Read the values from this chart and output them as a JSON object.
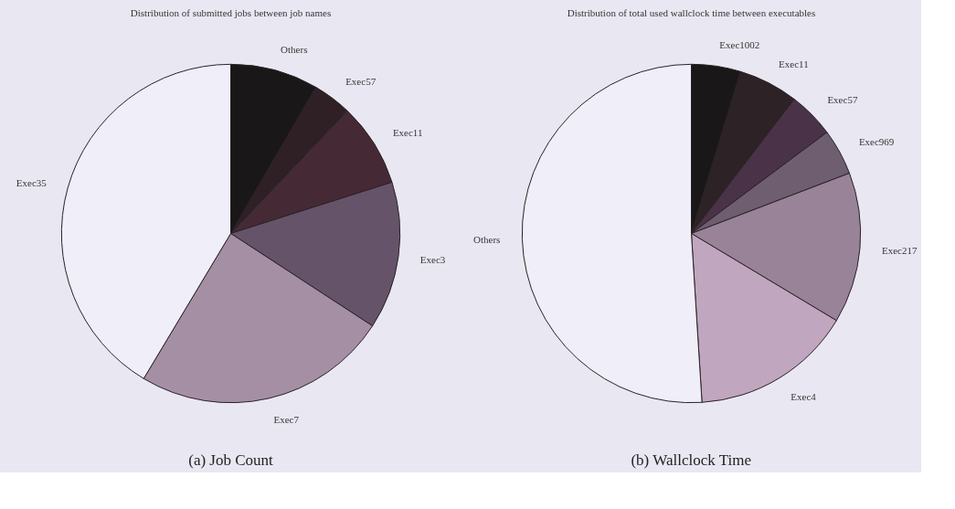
{
  "chart_data": [
    {
      "type": "pie",
      "title": "Distribution of submitted jobs between job names",
      "categories": [
        "Others",
        "Exec57",
        "Exec11",
        "Exec3",
        "Exec7",
        "Exec35"
      ],
      "values": [
        8.4,
        3.7,
        8.0,
        14.1,
        24.4,
        41.4
      ],
      "colors": [
        "#1a1718",
        "#2e2025",
        "#452a35",
        "#65536a",
        "#a58fa5",
        "#f0eef8"
      ],
      "annotations": [
        "(a) Job Count"
      ]
    },
    {
      "type": "pie",
      "title": "Distribution of total used wallclock time between executables",
      "categories": [
        "Exec1002",
        "Exec11",
        "Exec57",
        "Exec969",
        "Exec217",
        "Exec4",
        "Others"
      ],
      "values": [
        4.7,
        5.7,
        4.4,
        4.4,
        14.4,
        15.4,
        51.0
      ],
      "colors": [
        "#1a1718",
        "#2d2226",
        "#4a3248",
        "#6e5e70",
        "#998398",
        "#c0a6bf",
        "#f0eef8"
      ],
      "annotations": [
        "(b) Wallclock Time"
      ]
    }
  ]
}
